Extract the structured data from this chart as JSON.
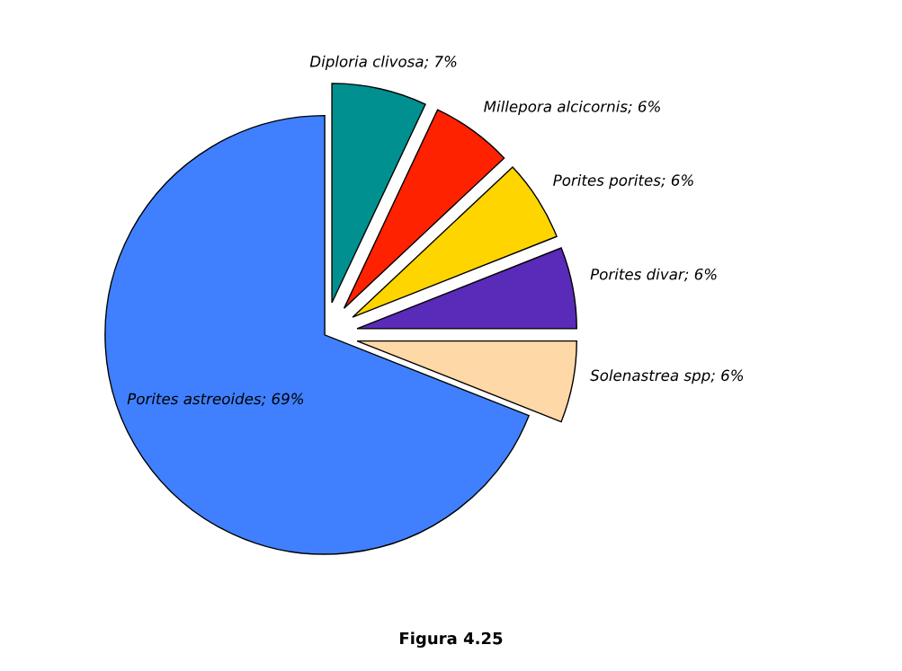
{
  "chart_data": {
    "type": "pie",
    "title": "Figura 4.25",
    "categories": [
      "Diploria clivosa",
      "Millepora alcicornis",
      "Porites porites",
      "Porites divar",
      "Solenastrea spp",
      "Porites astreoides"
    ],
    "value_labels": [
      "; 7%",
      "; 6%",
      "; 6%",
      "; 6%",
      "; 6%",
      "; 69%"
    ],
    "values": [
      7,
      6,
      6,
      6,
      6,
      69
    ],
    "colors": [
      "#009090",
      "#ff2200",
      "#ffd500",
      "#5a2ab8",
      "#ffd8a8",
      "#4080ff"
    ],
    "legend": false
  }
}
